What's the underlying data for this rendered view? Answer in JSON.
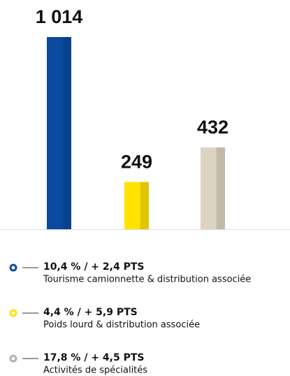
{
  "chart_data": {
    "type": "bar",
    "categories": [
      "Tourisme camionnette & distribution associée",
      "Poids lourd & distribution associée",
      "Activités de spécialités"
    ],
    "values": [
      1014,
      249,
      432
    ],
    "value_labels": [
      "1 014",
      "249",
      "432"
    ],
    "stats": [
      "10,4 % / + 2,4 PTS",
      "4,4 % / + 5,9 PTS",
      "17,8 % / + 4,5 PTS"
    ],
    "colors": [
      "#0a4aa0",
      "#ffe200",
      "#dcd3c2"
    ],
    "marker_colors": [
      "#0a4aa0",
      "#ffe200",
      "#b5b0a8"
    ]
  }
}
